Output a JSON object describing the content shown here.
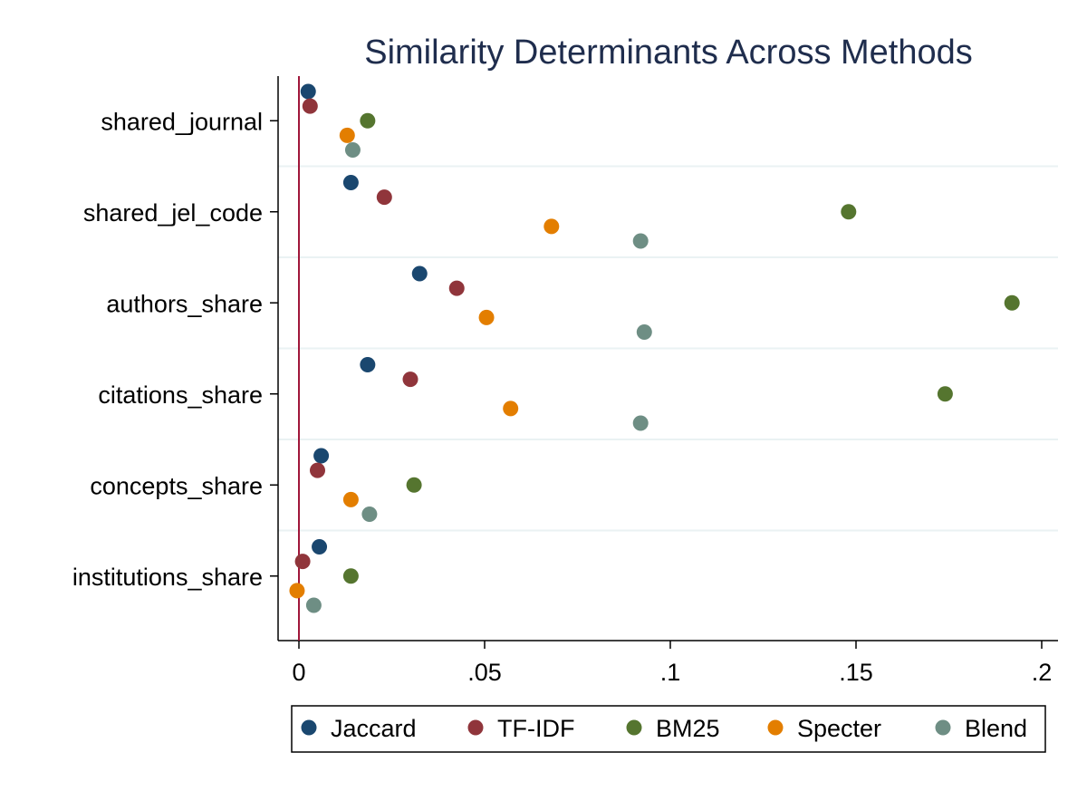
{
  "chart_data": {
    "type": "scatter",
    "orientation": "horizontal-dot",
    "title": "Similarity Determinants Across Methods",
    "xlabel": "",
    "ylabel": "",
    "categories": [
      "shared_journal",
      "shared_jel_code",
      "authors_share",
      "citations_share",
      "concepts_share",
      "institutions_share"
    ],
    "xlim": [
      -0.005,
      0.205
    ],
    "xticks": [
      0,
      0.05,
      0.1,
      0.15,
      0.2
    ],
    "xtick_labels": [
      "0",
      ".05",
      ".1",
      ".15",
      ".2"
    ],
    "reference_line": 0,
    "grid": "horizontal-between-categories",
    "legend_position": "bottom",
    "series": [
      {
        "name": "Jaccard",
        "color": "#1a476f",
        "values": [
          0.0025,
          0.014,
          0.0325,
          0.0185,
          0.006,
          0.0055
        ]
      },
      {
        "name": "TF-IDF",
        "color": "#90353b",
        "values": [
          0.003,
          0.023,
          0.0425,
          0.03,
          0.005,
          0.001
        ]
      },
      {
        "name": "BM25",
        "color": "#55752f",
        "values": [
          0.0185,
          0.148,
          0.192,
          0.174,
          0.031,
          0.014
        ]
      },
      {
        "name": "Specter",
        "color": "#e37e00",
        "values": [
          0.013,
          0.068,
          0.0505,
          0.057,
          0.014,
          -0.0005
        ]
      },
      {
        "name": "Blend",
        "color": "#6e8e84",
        "values": [
          0.0145,
          0.092,
          0.093,
          0.092,
          0.019,
          0.004
        ]
      }
    ]
  }
}
